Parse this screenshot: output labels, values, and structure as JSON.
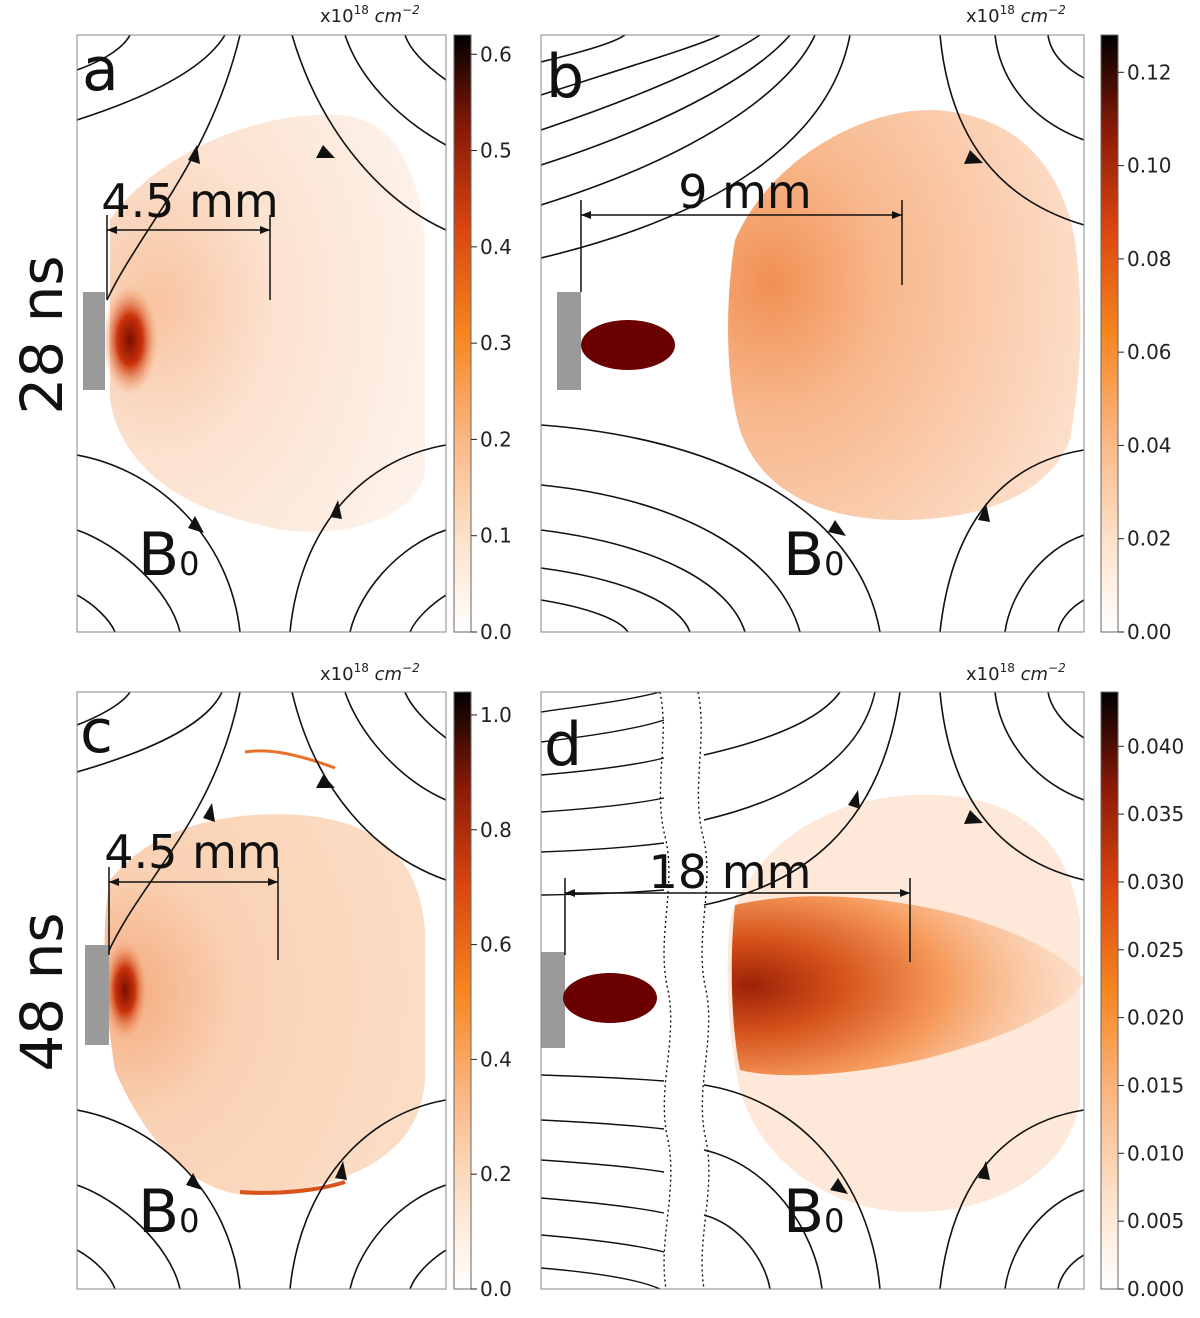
{
  "figure": {
    "row_labels": [
      "28 ns",
      "48 ns"
    ],
    "colorbar_unit": "x10^18 cm^-2"
  },
  "colors": {
    "colormap": [
      "#ffffff",
      "#fde3cc",
      "#fbb885",
      "#f7851f",
      "#d8440f",
      "#8a1a06",
      "#000000"
    ],
    "field_lines": "#111111",
    "target": "#999999",
    "obstacle": "#6b0000"
  },
  "panels": [
    {
      "id": "a",
      "scale_label": "4.5 mm",
      "field_label": "B",
      "field_subscript": "0",
      "colorbar_ticks": [
        "0.0",
        "0.1",
        "0.2",
        "0.3",
        "0.4",
        "0.5",
        "0.6"
      ],
      "colorbar_max": 0.62
    },
    {
      "id": "b",
      "scale_label": "9 mm",
      "field_label": "B",
      "field_subscript": "0",
      "colorbar_ticks": [
        "0.00",
        "0.02",
        "0.04",
        "0.06",
        "0.08",
        "0.10",
        "0.12"
      ],
      "colorbar_max": 0.128
    },
    {
      "id": "c",
      "scale_label": "4.5 mm",
      "field_label": "B",
      "field_subscript": "0",
      "colorbar_ticks": [
        "0.0",
        "0.2",
        "0.4",
        "0.6",
        "0.8",
        "1.0"
      ],
      "colorbar_max": 1.04
    },
    {
      "id": "d",
      "scale_label": "18 mm",
      "field_label": "B",
      "field_subscript": "0",
      "colorbar_ticks": [
        "0.000",
        "0.005",
        "0.010",
        "0.015",
        "0.020",
        "0.025",
        "0.030",
        "0.035",
        "0.040"
      ],
      "colorbar_max": 0.044
    }
  ],
  "chart_data": [
    {
      "type": "heatmap",
      "panel": "a",
      "time": "28 ns",
      "unit": "x10^18 cm^-2",
      "vmin": 0.0,
      "vmax": 0.62,
      "colorbar_ticks": [
        0.0,
        0.1,
        0.2,
        0.3,
        0.4,
        0.5,
        0.6
      ],
      "peak_value": 0.45,
      "annotation": "4.5 mm"
    },
    {
      "type": "heatmap",
      "panel": "b",
      "time": "28 ns",
      "unit": "x10^18 cm^-2",
      "vmin": 0.0,
      "vmax": 0.128,
      "colorbar_ticks": [
        0.0,
        0.02,
        0.04,
        0.06,
        0.08,
        0.1,
        0.12
      ],
      "peak_value": 0.06,
      "annotation": "9 mm"
    },
    {
      "type": "heatmap",
      "panel": "c",
      "time": "48 ns",
      "unit": "x10^18 cm^-2",
      "vmin": 0.0,
      "vmax": 1.04,
      "colorbar_ticks": [
        0.0,
        0.2,
        0.4,
        0.6,
        0.8,
        1.0
      ],
      "peak_value": 0.7,
      "annotation": "4.5 mm"
    },
    {
      "type": "heatmap",
      "panel": "d",
      "time": "48 ns",
      "unit": "x10^18 cm^-2",
      "vmin": 0.0,
      "vmax": 0.044,
      "colorbar_ticks": [
        0.0,
        0.005,
        0.01,
        0.015,
        0.02,
        0.025,
        0.03,
        0.035,
        0.04
      ],
      "peak_value": 0.03,
      "annotation": "18 mm"
    }
  ]
}
